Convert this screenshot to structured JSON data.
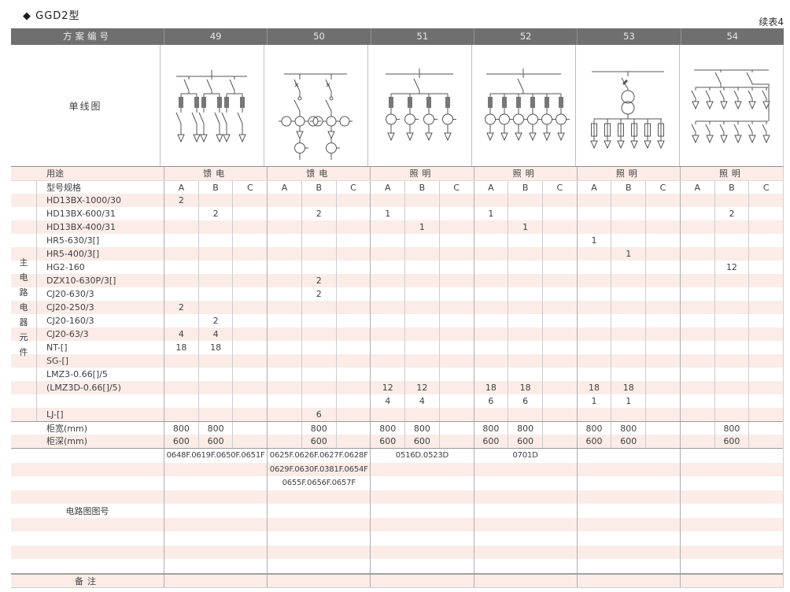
{
  "page": {
    "title": "◆ GGD2型",
    "continued": "续表4"
  },
  "colors": {
    "header_bg": "#6f6f6f",
    "header_text": "#e9e9e9",
    "stripe_pink": "#fbece8",
    "border_light": "#cdcdcd",
    "border_mid": "#aeaeae",
    "section_line": "#9a9a9a",
    "text": "#3f3f3f"
  },
  "table": {
    "scheme_header": {
      "label": "方案编号",
      "numbers": [
        "49",
        "50",
        "51",
        "52",
        "53",
        "54"
      ]
    },
    "diagram_label": "单线图",
    "usage": {
      "label": "用途",
      "values": [
        "馈电",
        "馈电",
        "照明",
        "照明",
        "照明",
        "照明"
      ]
    },
    "spec_header": {
      "label": "型号规格",
      "subcols": [
        "A",
        "B",
        "C"
      ]
    },
    "side_label": "主电路电器元件",
    "components": [
      {
        "label": "HD13BX-1000/30",
        "cells": [
          "2",
          "",
          "",
          "",
          "",
          "",
          "",
          "",
          "",
          "",
          "",
          "",
          "",
          "",
          "",
          "",
          "",
          ""
        ]
      },
      {
        "label": "HD13BX-600/31",
        "cells": [
          "",
          "2",
          "",
          "",
          "2",
          "",
          "1",
          "",
          "",
          "1",
          "",
          "",
          "",
          "",
          "",
          "",
          "2",
          ""
        ]
      },
      {
        "label": "HD13BX-400/31",
        "cells": [
          "",
          "",
          "",
          "",
          "",
          "",
          "",
          "1",
          "",
          "",
          "1",
          "",
          "",
          "",
          "",
          "",
          "",
          ""
        ]
      },
      {
        "label": "HR5-630/3[]",
        "cells": [
          "",
          "",
          "",
          "",
          "",
          "",
          "",
          "",
          "",
          "",
          "",
          "",
          "1",
          "",
          "",
          "",
          "",
          ""
        ]
      },
      {
        "label": "HR5-400/3[]",
        "cells": [
          "",
          "",
          "",
          "",
          "",
          "",
          "",
          "",
          "",
          "",
          "",
          "",
          "",
          "1",
          "",
          "",
          "",
          ""
        ]
      },
      {
        "label": "HG2-160",
        "cells": [
          "",
          "",
          "",
          "",
          "",
          "",
          "",
          "",
          "",
          "",
          "",
          "",
          "",
          "",
          "",
          "",
          "12",
          ""
        ]
      },
      {
        "label": "DZX10-630P/3[]",
        "cells": [
          "",
          "",
          "",
          "",
          "2",
          "",
          "",
          "",
          "",
          "",
          "",
          "",
          "",
          "",
          "",
          "",
          "",
          ""
        ]
      },
      {
        "label": "CJ20-630/3",
        "cells": [
          "",
          "",
          "",
          "",
          "2",
          "",
          "",
          "",
          "",
          "",
          "",
          "",
          "",
          "",
          "",
          "",
          "",
          ""
        ]
      },
      {
        "label": "CJ20-250/3",
        "cells": [
          "2",
          "",
          "",
          "",
          "",
          "",
          "",
          "",
          "",
          "",
          "",
          "",
          "",
          "",
          "",
          "",
          "",
          ""
        ]
      },
      {
        "label": "CJ20-160/3",
        "cells": [
          "",
          "2",
          "",
          "",
          "",
          "",
          "",
          "",
          "",
          "",
          "",
          "",
          "",
          "",
          "",
          "",
          "",
          ""
        ]
      },
      {
        "label": "CJ20-63/3",
        "cells": [
          "4",
          "4",
          "",
          "",
          "",
          "",
          "",
          "",
          "",
          "",
          "",
          "",
          "",
          "",
          "",
          "",
          "",
          ""
        ]
      },
      {
        "label": "NT-[]",
        "cells": [
          "18",
          "18",
          "",
          "",
          "",
          "",
          "",
          "",
          "",
          "",
          "",
          "",
          "",
          "",
          "",
          "",
          "",
          ""
        ]
      },
      {
        "label": "SG-[]",
        "cells": [
          "",
          "",
          "",
          "",
          "",
          "",
          "",
          "",
          "",
          "",
          "",
          "",
          "",
          "",
          "",
          "",
          "",
          ""
        ]
      },
      {
        "label": "LMZ3-0.66[]/5",
        "cells": [
          "",
          "",
          "",
          "",
          "",
          "",
          "",
          "",
          "",
          "",
          "",
          "",
          "",
          "",
          "",
          "",
          "",
          ""
        ]
      },
      {
        "label": "(LMZ3D-0.66[]/5)",
        "cells": [
          "",
          "",
          "",
          "",
          "",
          "",
          "12",
          "12",
          "",
          "18",
          "18",
          "",
          "18",
          "18",
          "",
          "",
          "",
          ""
        ]
      },
      {
        "label": "",
        "cells": [
          "",
          "",
          "",
          "",
          "",
          "",
          "4",
          "4",
          "",
          "6",
          "6",
          "",
          "1",
          "1",
          "",
          "",
          "",
          ""
        ]
      },
      {
        "label": "LJ-[]",
        "cells": [
          "",
          "",
          "",
          "",
          "6",
          "",
          "",
          "",
          "",
          "",
          "",
          "",
          "",
          "",
          "",
          "",
          "",
          ""
        ]
      }
    ],
    "width_row": {
      "label": "柜宽(mm)",
      "cells": [
        "800",
        "800",
        "",
        "",
        "800",
        "",
        "800",
        "800",
        "",
        "800",
        "800",
        "",
        "800",
        "800",
        "",
        "",
        "800",
        ""
      ]
    },
    "depth_row": {
      "label": "柜深(mm)",
      "cells": [
        "600",
        "600",
        "",
        "",
        "600",
        "",
        "600",
        "600",
        "",
        "600",
        "600",
        "",
        "600",
        "600",
        "",
        "",
        "600",
        ""
      ]
    },
    "diagram_numbers": {
      "label": "电路图图号",
      "columns": [
        [
          "0648F.0619F.0650F.0651F"
        ],
        [
          "0625F.0626F.0627F.0628F",
          "0629F.0630F.0381F.0654F",
          "0655F.0656F.0657F"
        ],
        [
          "0516D.0523D"
        ],
        [
          "0701D"
        ],
        [],
        []
      ]
    },
    "remark": {
      "label": "备注"
    }
  }
}
